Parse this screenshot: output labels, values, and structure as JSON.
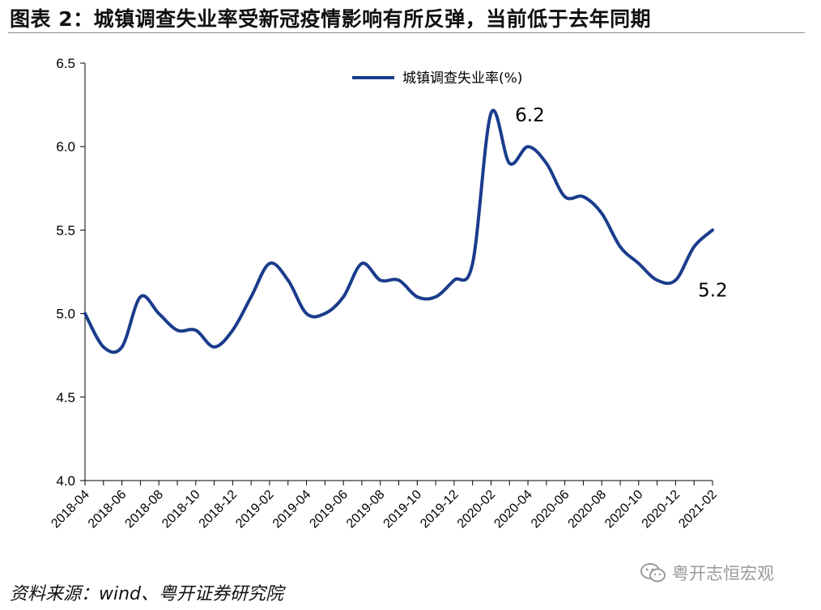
{
  "title": "图表 2：城镇调查失业率受新冠疫情影响有所反弹，当前低于去年同期",
  "source": "资料来源：wind、粤开证券研究院",
  "watermark": {
    "text": "粤开志恒宏观",
    "icon": "wechat-icon"
  },
  "colors": {
    "line": "#1a3c8c",
    "axis": "#000000"
  },
  "chart_data": {
    "type": "line",
    "title": "",
    "xlabel": "",
    "ylabel": "",
    "ylim": [
      4.0,
      6.5
    ],
    "yticks": [
      "4.0",
      "4.5",
      "5.0",
      "5.5",
      "6.0",
      "6.5"
    ],
    "grid": false,
    "legend": "top-center",
    "x_tick_labels": [
      "2018-04",
      "2018-06",
      "2018-08",
      "2018-10",
      "2018-12",
      "2019-02",
      "2019-04",
      "2019-06",
      "2019-08",
      "2019-10",
      "2019-12",
      "2020-02",
      "2020-04",
      "2020-06",
      "2020-08",
      "2020-10",
      "2020-12",
      "2021-02"
    ],
    "x": [
      "2018-04",
      "2018-05",
      "2018-06",
      "2018-07",
      "2018-08",
      "2018-09",
      "2018-10",
      "2018-11",
      "2018-12",
      "2019-01",
      "2019-02",
      "2019-03",
      "2019-04",
      "2019-05",
      "2019-06",
      "2019-07",
      "2019-08",
      "2019-09",
      "2019-10",
      "2019-11",
      "2019-12",
      "2020-01",
      "2020-02",
      "2020-03",
      "2020-04",
      "2020-05",
      "2020-06",
      "2020-07",
      "2020-08",
      "2020-09",
      "2020-10",
      "2020-11",
      "2020-12",
      "2021-01",
      "2021-02"
    ],
    "series": [
      {
        "name": "城镇调查失业率(%)",
        "values": [
          5.0,
          4.8,
          4.8,
          5.1,
          5.0,
          4.9,
          4.9,
          4.8,
          4.9,
          5.1,
          5.3,
          5.2,
          5.0,
          5.0,
          5.1,
          5.3,
          5.2,
          5.2,
          5.1,
          5.1,
          5.2,
          5.3,
          6.2,
          5.9,
          6.0,
          5.9,
          5.7,
          5.7,
          5.6,
          5.4,
          5.3,
          5.2,
          5.2,
          5.4,
          5.5
        ]
      }
    ],
    "annotations": [
      {
        "text": "6.2",
        "x": "2020-02",
        "y": 6.2
      },
      {
        "text": "5.2",
        "x": "2020-12",
        "y": 5.2
      }
    ]
  }
}
